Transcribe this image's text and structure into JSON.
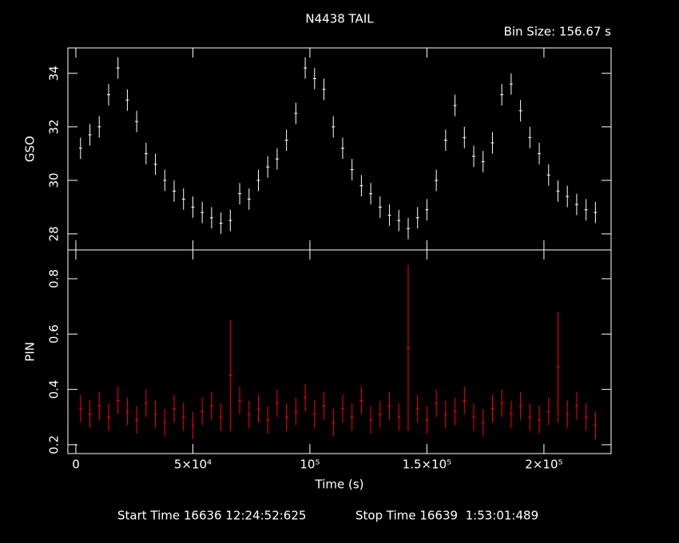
{
  "chart_data": [
    {
      "type": "errorbar",
      "title": "N4438 TAIL",
      "subtitle": "Bin Size: 156.67 s",
      "ylabel": "GSO",
      "color": "#ffffff",
      "x": [
        2000,
        6000,
        10000,
        14000,
        18000,
        22000,
        26000,
        30000,
        34000,
        38000,
        42000,
        46000,
        50000,
        54000,
        58000,
        62000,
        66000,
        70000,
        74000,
        78000,
        82000,
        86000,
        90000,
        94000,
        98000,
        102000,
        106000,
        110000,
        114000,
        118000,
        122000,
        126000,
        130000,
        134000,
        138000,
        142000,
        146000,
        150000,
        154000,
        158000,
        162000,
        166000,
        170000,
        174000,
        178000,
        182000,
        186000,
        190000,
        194000,
        198000,
        202000,
        206000,
        210000,
        214000,
        218000,
        222000
      ],
      "values": [
        31.2,
        31.7,
        32.0,
        33.2,
        34.2,
        33.0,
        32.2,
        31.0,
        30.6,
        30.0,
        29.6,
        29.3,
        29.0,
        28.8,
        28.6,
        28.4,
        28.5,
        29.5,
        29.3,
        30.0,
        30.5,
        30.8,
        31.5,
        32.5,
        34.2,
        33.8,
        33.4,
        32.0,
        31.2,
        30.4,
        29.8,
        29.5,
        29.0,
        28.7,
        28.5,
        28.2,
        28.6,
        28.9,
        30.0,
        31.5,
        32.8,
        31.6,
        30.9,
        30.7,
        31.4,
        33.2,
        33.6,
        32.6,
        31.6,
        31.0,
        30.2,
        29.6,
        29.4,
        29.1,
        28.9,
        28.8
      ],
      "errors": [
        0.4,
        0.4,
        0.4,
        0.4,
        0.4,
        0.4,
        0.4,
        0.4,
        0.4,
        0.4,
        0.4,
        0.4,
        0.4,
        0.4,
        0.4,
        0.4,
        0.4,
        0.4,
        0.4,
        0.4,
        0.4,
        0.4,
        0.4,
        0.4,
        0.4,
        0.4,
        0.4,
        0.4,
        0.4,
        0.4,
        0.4,
        0.4,
        0.4,
        0.4,
        0.4,
        0.4,
        0.4,
        0.4,
        0.4,
        0.4,
        0.4,
        0.4,
        0.4,
        0.4,
        0.4,
        0.4,
        0.4,
        0.4,
        0.4,
        0.4,
        0.4,
        0.4,
        0.4,
        0.4,
        0.4,
        0.4
      ],
      "xlim": [
        -3400,
        228700
      ],
      "ylim": [
        27.4,
        34.95
      ],
      "yticks": [
        28,
        30,
        32,
        34
      ]
    },
    {
      "type": "errorbar",
      "ylabel": "PIN",
      "xlabel": "Time (s)",
      "color": "#ff0000",
      "x": [
        2000,
        6000,
        10000,
        14000,
        18000,
        22000,
        26000,
        30000,
        34000,
        38000,
        42000,
        46000,
        50000,
        54000,
        58000,
        62000,
        66000,
        70000,
        74000,
        78000,
        82000,
        86000,
        90000,
        94000,
        98000,
        102000,
        106000,
        110000,
        114000,
        118000,
        122000,
        126000,
        130000,
        134000,
        138000,
        142000,
        146000,
        150000,
        154000,
        158000,
        162000,
        166000,
        170000,
        174000,
        178000,
        182000,
        186000,
        190000,
        194000,
        198000,
        202000,
        206000,
        210000,
        214000,
        218000,
        222000
      ],
      "values": [
        0.33,
        0.31,
        0.34,
        0.3,
        0.36,
        0.32,
        0.29,
        0.35,
        0.31,
        0.28,
        0.33,
        0.3,
        0.27,
        0.32,
        0.34,
        0.3,
        0.45,
        0.36,
        0.31,
        0.33,
        0.29,
        0.35,
        0.3,
        0.32,
        0.37,
        0.31,
        0.34,
        0.28,
        0.33,
        0.3,
        0.36,
        0.29,
        0.31,
        0.34,
        0.3,
        0.55,
        0.33,
        0.29,
        0.35,
        0.31,
        0.32,
        0.36,
        0.3,
        0.28,
        0.33,
        0.35,
        0.31,
        0.34,
        0.3,
        0.29,
        0.32,
        0.48,
        0.31,
        0.34,
        0.3,
        0.27
      ],
      "errors": [
        0.05,
        0.05,
        0.05,
        0.05,
        0.05,
        0.05,
        0.05,
        0.05,
        0.05,
        0.05,
        0.05,
        0.05,
        0.05,
        0.05,
        0.05,
        0.05,
        0.2,
        0.05,
        0.05,
        0.05,
        0.05,
        0.05,
        0.05,
        0.05,
        0.05,
        0.05,
        0.05,
        0.05,
        0.05,
        0.05,
        0.05,
        0.05,
        0.05,
        0.05,
        0.05,
        0.3,
        0.05,
        0.05,
        0.05,
        0.05,
        0.05,
        0.05,
        0.05,
        0.05,
        0.05,
        0.05,
        0.05,
        0.05,
        0.05,
        0.05,
        0.05,
        0.2,
        0.05,
        0.05,
        0.05,
        0.05
      ],
      "xlim": [
        -3400,
        228700
      ],
      "ylim": [
        0.168,
        0.904
      ],
      "yticks": [
        0.2,
        0.4,
        0.6,
        0.8
      ],
      "xticks": [
        0,
        {
          "value": 50000,
          "label": "5×10⁴"
        },
        {
          "value": 100000,
          "label": "10⁵"
        },
        {
          "value": 150000,
          "label": "1.5×10⁵"
        },
        {
          "value": 200000,
          "label": "2×10⁵"
        }
      ]
    }
  ],
  "footer": {
    "start": "Start Time 16636 12:24:52:625",
    "stop": "Stop Time 16639  1:53:01:489"
  }
}
